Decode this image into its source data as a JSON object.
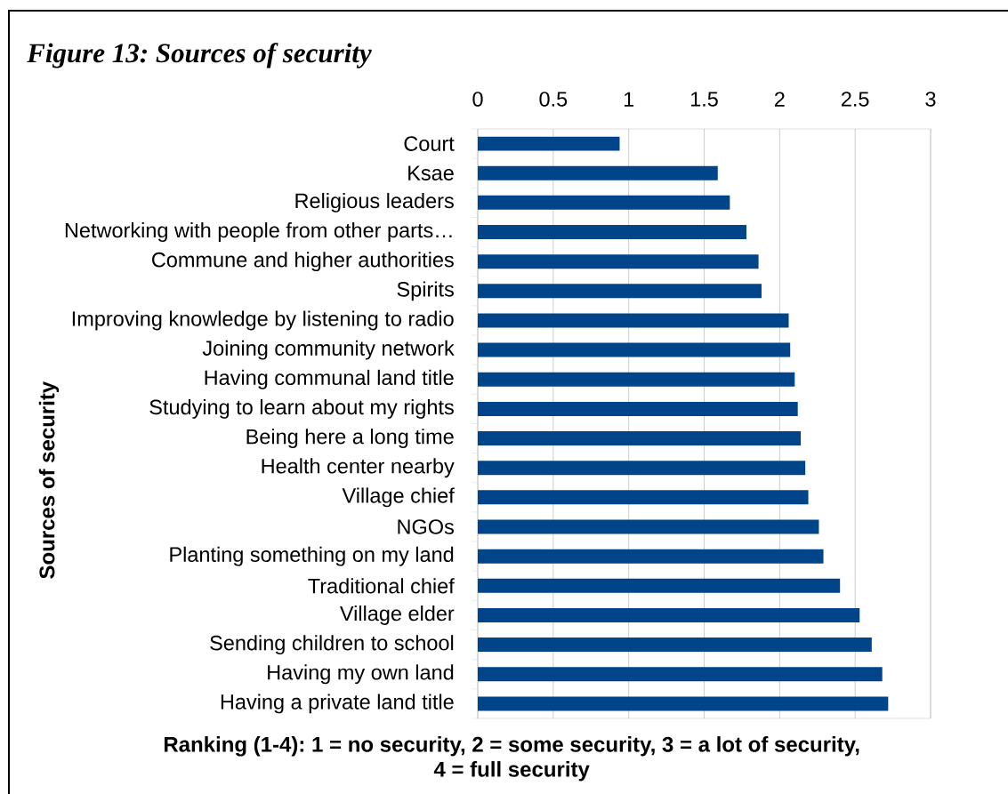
{
  "chart_data": {
    "type": "bar",
    "orientation": "horizontal",
    "title": "Figure 13: Sources of security",
    "xlabel": "Ranking (1-4): 1 = no security, 2 = some security, 3 = a lot of security, 4 = full security",
    "ylabel": "Sources of security",
    "categories": [
      "Court",
      "Ksae",
      "Religious leaders",
      "Networking with people from other parts…",
      "Commune and higher authorities",
      "Spirits",
      "Improving knowledge by listening to radio",
      "Joining community network",
      "Having communal land title",
      "Studying to learn about my rights",
      "Being here a long time",
      "Health center nearby",
      "Village chief",
      "NGOs",
      "Planting something on my land",
      "Traditional chief",
      "Village elder",
      "Sending children to school",
      "Having my own land",
      "Having a private land title"
    ],
    "values": [
      0.94,
      1.59,
      1.67,
      1.78,
      1.86,
      1.88,
      2.06,
      2.07,
      2.1,
      2.12,
      2.14,
      2.17,
      2.19,
      2.26,
      2.29,
      2.4,
      2.53,
      2.61,
      2.68,
      2.72
    ],
    "color": "#004589",
    "xlim": [
      0,
      3
    ],
    "xticks": [
      0,
      0.5,
      1,
      1.5,
      2,
      2.5,
      3
    ],
    "grid": "x"
  }
}
